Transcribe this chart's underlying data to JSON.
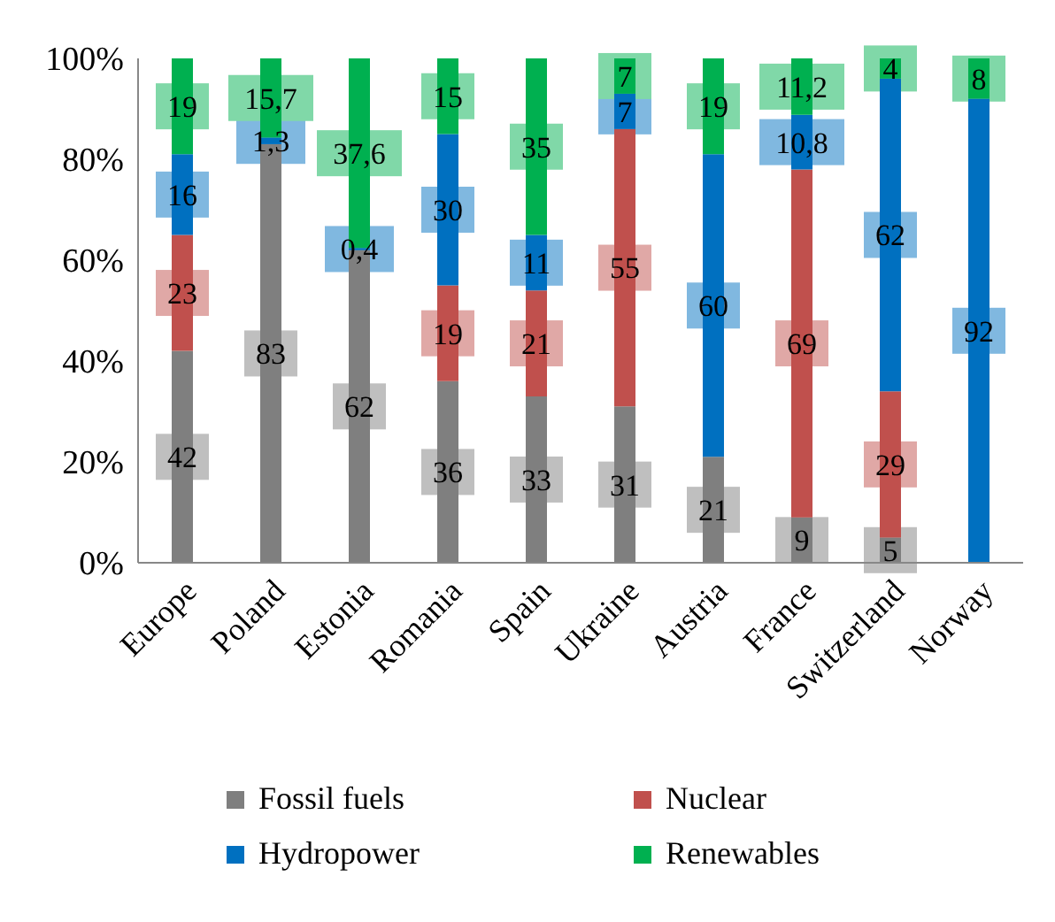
{
  "chart_data": {
    "type": "bar",
    "stacked": true,
    "categories": [
      "Europe",
      "Poland",
      "Estonia",
      "Romania",
      "Spain",
      "Ukraine",
      "Austria",
      "France",
      "Switzerland",
      "Norway"
    ],
    "series": [
      {
        "name": "Fossil fuels",
        "color": "#7f7f7f",
        "values": [
          42,
          83,
          62,
          36,
          33,
          31,
          21,
          9,
          5,
          null
        ],
        "value_labels": [
          "42",
          "83",
          "62",
          "36",
          "33",
          "31",
          "21",
          "9",
          "5",
          null
        ]
      },
      {
        "name": "Nuclear",
        "color": "#c0504d",
        "values": [
          23,
          null,
          null,
          19,
          21,
          55,
          null,
          69,
          29,
          null
        ],
        "value_labels": [
          "23",
          null,
          null,
          "19",
          "21",
          "55",
          null,
          "69",
          "29",
          null
        ]
      },
      {
        "name": "Hydropower",
        "color": "#0070c0",
        "values": [
          16,
          1.3,
          0.4,
          30,
          11,
          7,
          60,
          10.8,
          62,
          92
        ],
        "value_labels": [
          "16",
          "1,3",
          "0,4",
          "30",
          "11",
          "7",
          "60",
          "10,8",
          "62",
          "92"
        ]
      },
      {
        "name": "Renewables",
        "color": "#00b050",
        "values": [
          19,
          15.7,
          37.6,
          15,
          35,
          7,
          19,
          11.2,
          4,
          8
        ],
        "value_labels": [
          "19",
          "15,7",
          "37,6",
          "15",
          "35",
          "7",
          "19",
          "11,2",
          "4",
          "8"
        ]
      }
    ],
    "ylim": [
      0,
      100
    ],
    "yticks": [
      {
        "value": 0,
        "label": "0%"
      },
      {
        "value": 20,
        "label": "20%"
      },
      {
        "value": 40,
        "label": "40%"
      },
      {
        "value": 60,
        "label": "60%"
      },
      {
        "value": 80,
        "label": "80%"
      },
      {
        "value": 100,
        "label": "100%"
      }
    ],
    "grid": false,
    "legend": "bottom"
  }
}
